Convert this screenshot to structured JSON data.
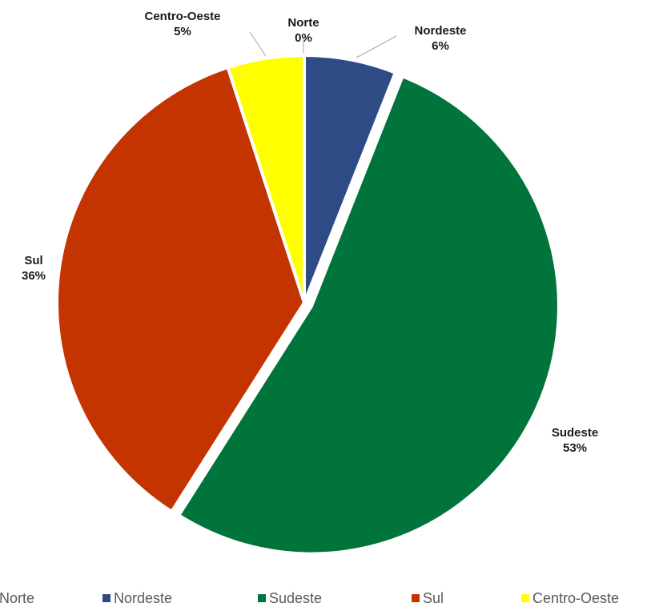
{
  "chart_data": {
    "type": "pie",
    "title": "",
    "legend_position": "bottom",
    "categories": [
      "Norte",
      "Nordeste",
      "Sudeste",
      "Sul",
      "Centro-Oeste"
    ],
    "values": [
      0,
      6,
      53,
      36,
      5
    ],
    "value_labels": [
      "0%",
      "6%",
      "53%",
      "36%",
      "5%"
    ],
    "colors": [
      "#2e75b6",
      "#2f4b85",
      "#00743a",
      "#c33400",
      "#ffff00"
    ]
  }
}
